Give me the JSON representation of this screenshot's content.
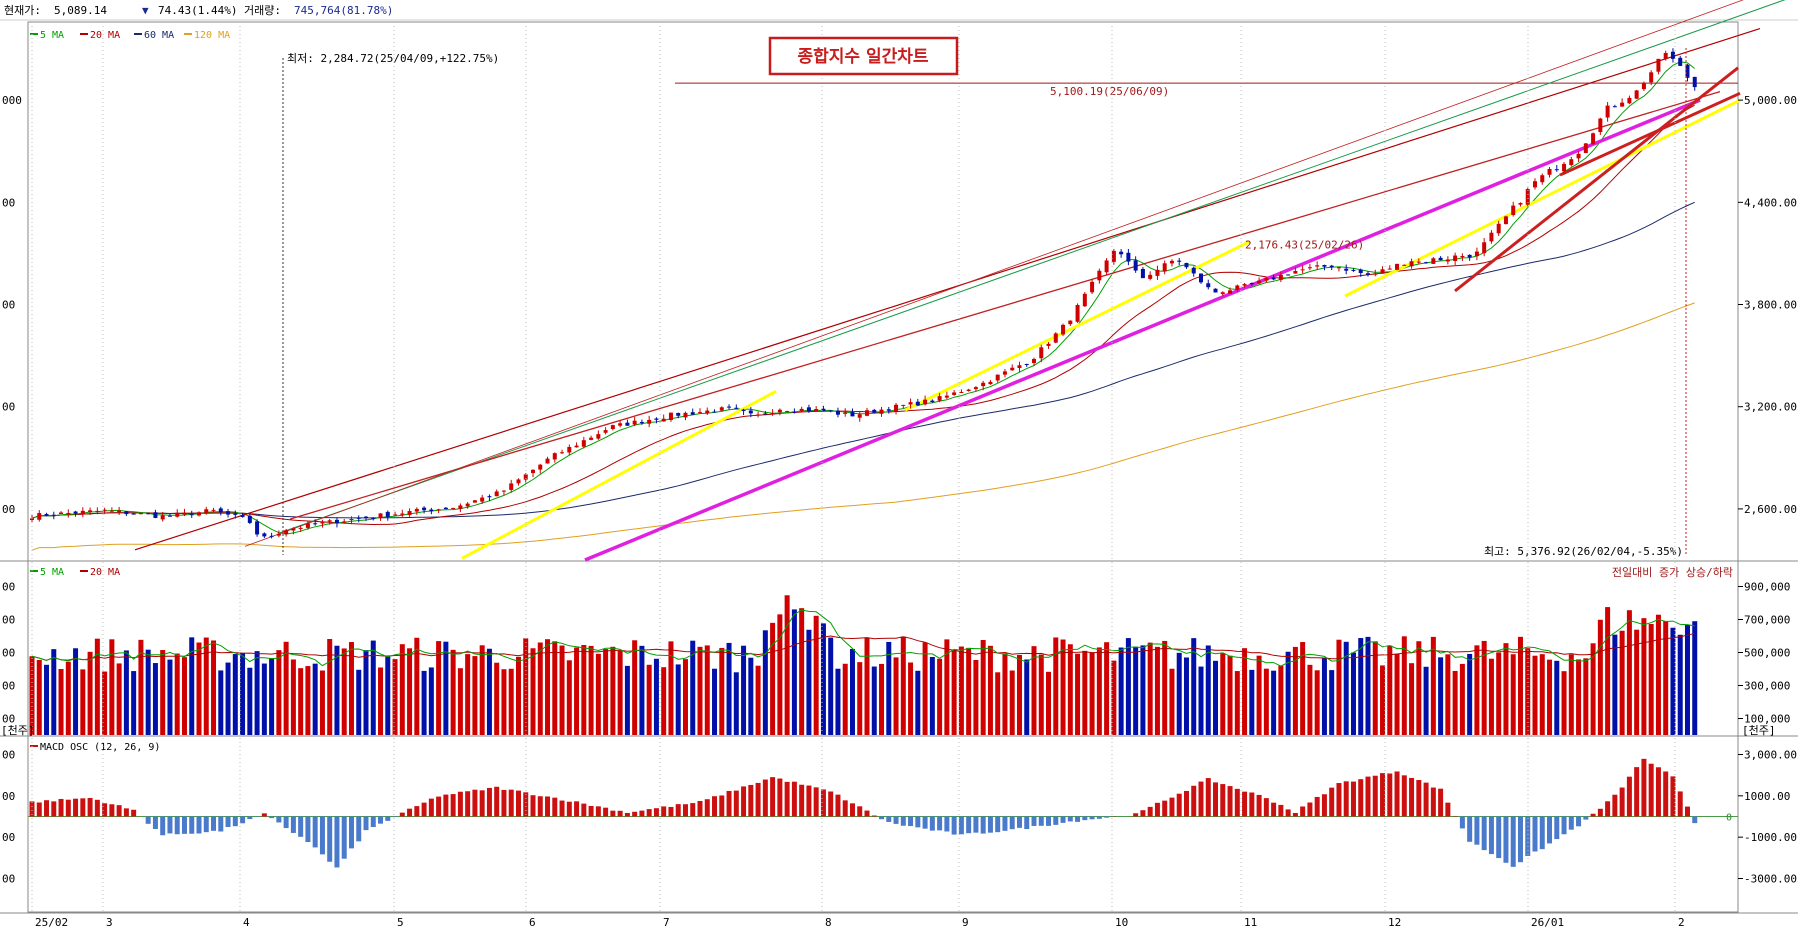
{
  "header": {
    "price_label": "현재가:",
    "price_value": "5,089.14",
    "change_arrow": "▼",
    "change_value": "74.43(1.44%)",
    "volume_label": "거래량:",
    "volume_value": "745,764(81.78%)"
  },
  "title_box": "종합지수 일간차트",
  "colors": {
    "up": "#d00000",
    "down": "#0010a8",
    "ma5": "#00a000",
    "ma20": "#b00000",
    "ma60": "#1a2a6a",
    "ma120": "#e0a020",
    "trend_yellow": "#ffff00",
    "trend_magenta": "#e020e0",
    "trend_red": "#cc2020",
    "macd_pos": "#cc1010",
    "macd_neg": "#4a7acc"
  },
  "chart_data": [
    {
      "type": "candlestick",
      "legend": [
        "5 MA",
        "20 MA",
        "60 MA",
        "120 MA"
      ],
      "y_ticks": [
        "5,000.00",
        "4,400.00",
        "3,800.00",
        "3,200.00",
        "2,600.00"
      ],
      "y_tick_values": [
        5000,
        4400,
        3800,
        3200,
        2600
      ],
      "ylim": [
        2300,
        5400
      ],
      "left_axis_partial": [
        "000",
        "00",
        "00",
        "00",
        "00"
      ],
      "annotations": {
        "low": "최저: 2,284.72(25/04/09,+122.75%)",
        "high": "최고: 5,376.92(26/02/04,-5.35%)",
        "resistance": "5,100.19(25/06/09)",
        "peak": "2,176.43(25/02/26)"
      },
      "resistance_level": 5100.19
    },
    {
      "type": "bar",
      "legend": [
        "5 MA",
        "20 MA"
      ],
      "note": "전일대비 증가 상승/하락",
      "y_ticks": [
        "900,000",
        "700,000",
        "500,000",
        "300,000",
        "100,000"
      ],
      "y_tick_values": [
        900000,
        700000,
        500000,
        300000,
        100000
      ],
      "unit": "[천주]",
      "left_unit": "[천주]",
      "left_axis_partial": [
        "00",
        "00",
        "00",
        "00",
        "00"
      ]
    },
    {
      "type": "bar",
      "legend": [
        "MACD OSC (12, 26, 9)"
      ],
      "y_ticks": [
        "3,000.00",
        "1000.00",
        "-1000.00",
        "-3000.00"
      ],
      "y_tick_values": [
        3000,
        1000,
        -1000,
        -3000
      ],
      "zero_label": "0",
      "left_axis_partial": [
        "00",
        "00",
        "00",
        "00"
      ]
    }
  ],
  "x_axis": {
    "labels": [
      "25/02",
      "3",
      "4",
      "5",
      "6",
      "7",
      "8",
      "9",
      "10",
      "11",
      "12",
      "26/01",
      "2"
    ]
  }
}
